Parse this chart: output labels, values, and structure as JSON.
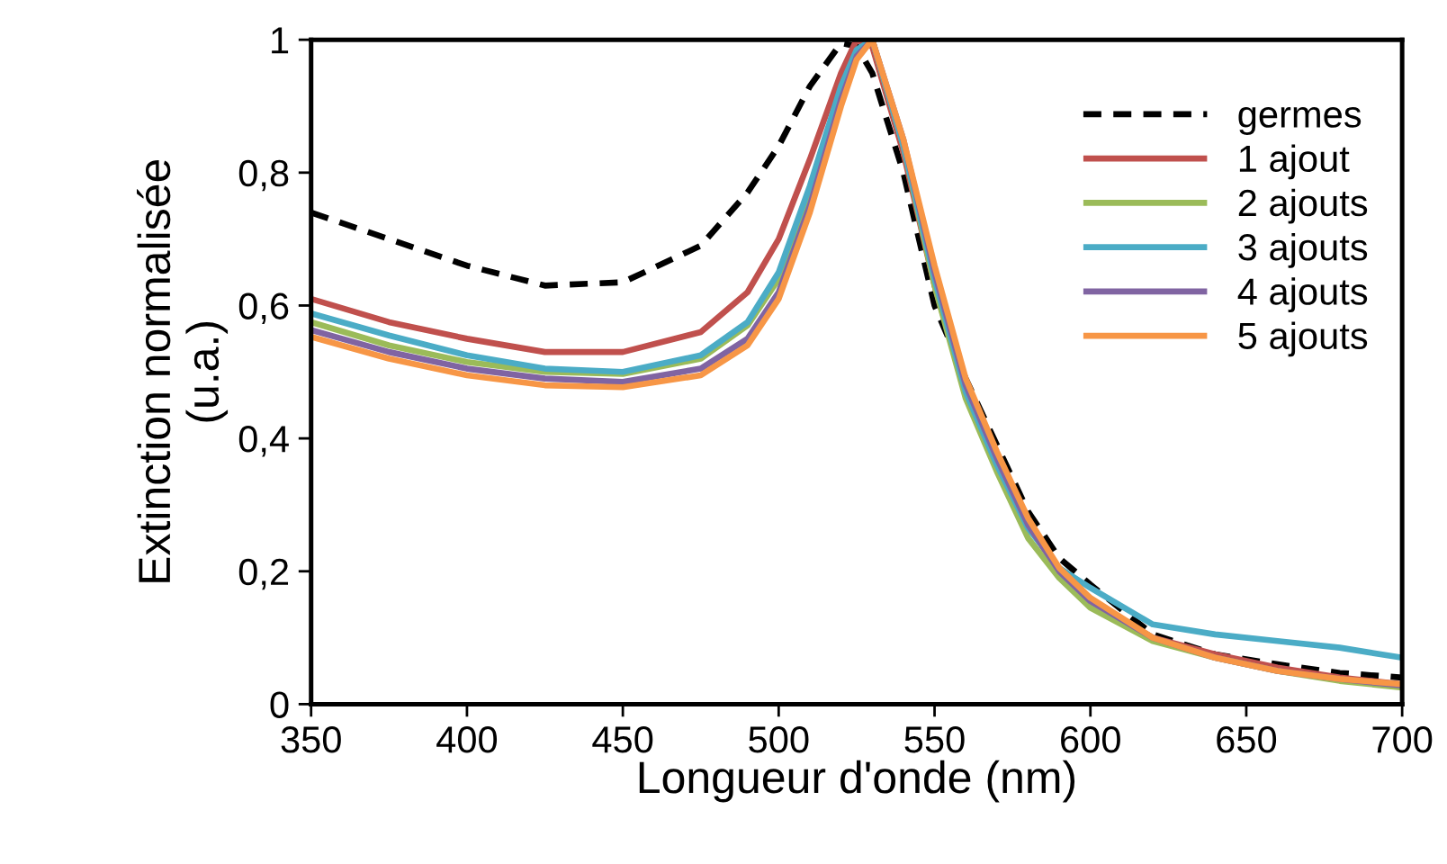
{
  "chart_data": {
    "type": "line",
    "xlabel": "Longueur d'onde (nm)",
    "ylabel": "Extinction normalisée\n(u.a.)",
    "x": [
      350,
      375,
      400,
      425,
      450,
      475,
      490,
      500,
      510,
      520,
      525,
      530,
      540,
      550,
      560,
      570,
      580,
      590,
      600,
      620,
      640,
      660,
      680,
      700
    ],
    "series": [
      {
        "name": "germes",
        "color": "#000000",
        "line_style": "dashed",
        "values": [
          0.74,
          0.7,
          0.66,
          0.63,
          0.635,
          0.69,
          0.77,
          0.84,
          0.93,
          0.995,
          0.99,
          0.95,
          0.8,
          0.6,
          0.49,
          0.39,
          0.29,
          0.22,
          0.18,
          0.105,
          0.075,
          0.06,
          0.047,
          0.04
        ]
      },
      {
        "name": "1 ajout",
        "color": "#c0504d",
        "values": [
          0.61,
          0.575,
          0.55,
          0.53,
          0.53,
          0.56,
          0.62,
          0.7,
          0.82,
          0.95,
          1.0,
          0.99,
          0.83,
          0.63,
          0.47,
          0.37,
          0.27,
          0.2,
          0.155,
          0.1,
          0.075,
          0.055,
          0.04,
          0.03
        ]
      },
      {
        "name": "2 ajouts",
        "color": "#9bbb59",
        "values": [
          0.575,
          0.54,
          0.515,
          0.5,
          0.497,
          0.52,
          0.57,
          0.64,
          0.77,
          0.92,
          0.98,
          1.0,
          0.84,
          0.63,
          0.46,
          0.35,
          0.25,
          0.19,
          0.145,
          0.095,
          0.07,
          0.05,
          0.035,
          0.025
        ]
      },
      {
        "name": "3 ajouts",
        "color": "#4bacc6",
        "values": [
          0.588,
          0.555,
          0.525,
          0.505,
          0.5,
          0.525,
          0.575,
          0.65,
          0.78,
          0.93,
          0.985,
          1.0,
          0.84,
          0.64,
          0.47,
          0.36,
          0.265,
          0.205,
          0.175,
          0.12,
          0.105,
          0.095,
          0.085,
          0.07
        ]
      },
      {
        "name": "4 ajouts",
        "color": "#8064a2",
        "values": [
          0.563,
          0.53,
          0.505,
          0.49,
          0.485,
          0.505,
          0.55,
          0.62,
          0.75,
          0.91,
          0.975,
          1.0,
          0.85,
          0.65,
          0.48,
          0.37,
          0.27,
          0.2,
          0.155,
          0.1,
          0.07,
          0.05,
          0.038,
          0.028
        ]
      },
      {
        "name": "5 ajouts",
        "color": "#f79646",
        "values": [
          0.553,
          0.52,
          0.495,
          0.48,
          0.477,
          0.495,
          0.54,
          0.61,
          0.74,
          0.9,
          0.97,
          1.0,
          0.85,
          0.66,
          0.49,
          0.38,
          0.28,
          0.205,
          0.16,
          0.1,
          0.07,
          0.05,
          0.038,
          0.03
        ]
      }
    ],
    "xlim": [
      350,
      700
    ],
    "xticks": [
      350,
      400,
      450,
      500,
      550,
      600,
      650,
      700
    ],
    "ylim": [
      0,
      1
    ],
    "yticks": [
      0,
      {
        "value": 0.2,
        "label": "0,2"
      },
      {
        "value": 0.4,
        "label": "0,4"
      },
      {
        "value": 0.6,
        "label": "0,6"
      },
      {
        "value": 0.8,
        "label": "0,8"
      },
      1
    ],
    "grid": false,
    "legend": "top right",
    "marker": "none"
  }
}
